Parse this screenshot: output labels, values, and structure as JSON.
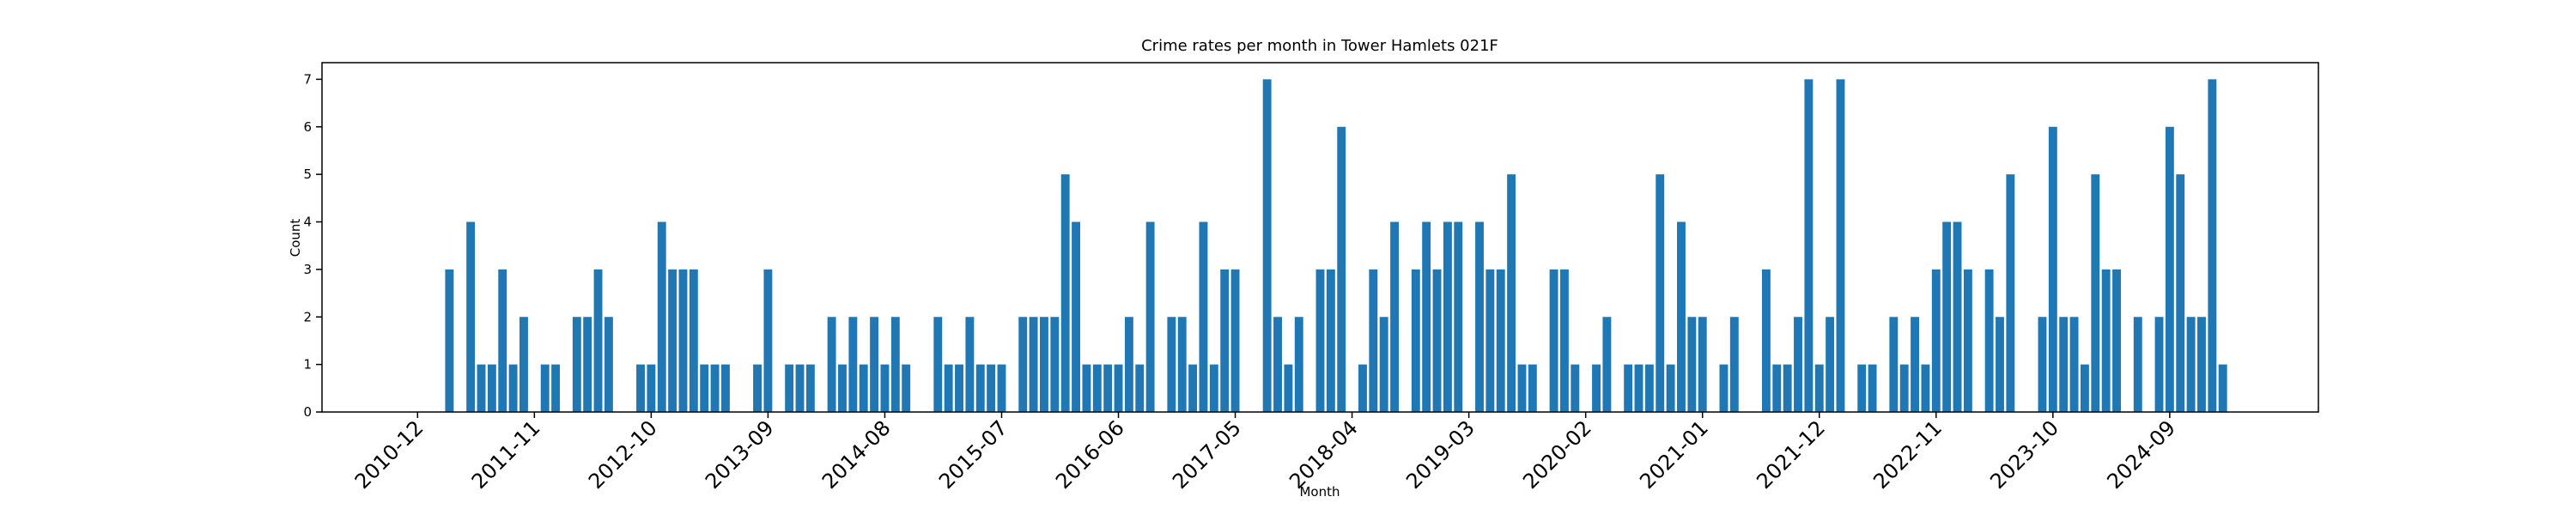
{
  "chart_data": {
    "type": "bar",
    "title": "Crime rates per month in Tower Hamlets 021F",
    "x_label": "Month",
    "y_label": "Count",
    "color": "#1f77b4",
    "x": [
      "2011-03",
      "2011-05",
      "2011-06",
      "2011-07",
      "2011-08",
      "2011-09",
      "2011-10",
      "2011-12",
      "2012-01",
      "2012-03",
      "2012-04",
      "2012-05",
      "2012-06",
      "2012-09",
      "2012-10",
      "2012-11",
      "2012-12",
      "2013-01",
      "2013-02",
      "2013-03",
      "2013-04",
      "2013-05",
      "2013-08",
      "2013-09",
      "2013-11",
      "2013-12",
      "2014-01",
      "2014-03",
      "2014-04",
      "2014-05",
      "2014-06",
      "2014-07",
      "2014-08",
      "2014-09",
      "2014-10",
      "2015-01",
      "2015-02",
      "2015-03",
      "2015-04",
      "2015-05",
      "2015-06",
      "2015-07",
      "2015-09",
      "2015-10",
      "2015-11",
      "2015-12",
      "2016-01",
      "2016-02",
      "2016-03",
      "2016-04",
      "2016-05",
      "2016-06",
      "2016-07",
      "2016-08",
      "2016-09",
      "2016-11",
      "2016-12",
      "2017-01",
      "2017-02",
      "2017-03",
      "2017-04",
      "2017-05",
      "2017-08",
      "2017-09",
      "2017-10",
      "2017-11",
      "2018-01",
      "2018-02",
      "2018-03",
      "2018-05",
      "2018-06",
      "2018-07",
      "2018-08",
      "2018-10",
      "2018-11",
      "2018-12",
      "2019-01",
      "2019-02",
      "2019-04",
      "2019-05",
      "2019-06",
      "2019-07",
      "2019-08",
      "2019-09",
      "2019-11",
      "2019-12",
      "2020-01",
      "2020-03",
      "2020-04",
      "2020-06",
      "2020-07",
      "2020-08",
      "2020-09",
      "2020-10",
      "2020-11",
      "2020-12",
      "2021-01",
      "2021-03",
      "2021-04",
      "2021-07",
      "2021-08",
      "2021-09",
      "2021-10",
      "2021-11",
      "2021-12",
      "2022-01",
      "2022-02",
      "2022-04",
      "2022-05",
      "2022-07",
      "2022-08",
      "2022-09",
      "2022-10",
      "2022-11",
      "2022-12",
      "2023-01",
      "2023-02",
      "2023-04",
      "2023-05",
      "2023-06",
      "2023-09",
      "2023-10",
      "2023-11",
      "2023-12",
      "2024-01",
      "2024-02",
      "2024-03",
      "2024-04",
      "2024-06",
      "2024-08",
      "2024-09",
      "2024-10",
      "2024-11",
      "2024-12",
      "2025-01",
      "2025-02"
    ],
    "values": [
      3,
      4,
      1,
      1,
      3,
      1,
      2,
      1,
      1,
      2,
      2,
      3,
      2,
      1,
      1,
      4,
      3,
      3,
      3,
      1,
      1,
      1,
      1,
      3,
      1,
      1,
      1,
      2,
      1,
      2,
      1,
      2,
      1,
      2,
      1,
      2,
      1,
      1,
      2,
      1,
      1,
      1,
      2,
      2,
      2,
      2,
      5,
      4,
      1,
      1,
      1,
      1,
      2,
      1,
      4,
      2,
      2,
      1,
      4,
      1,
      3,
      3,
      7,
      2,
      1,
      2,
      3,
      3,
      6,
      1,
      3,
      2,
      4,
      3,
      4,
      3,
      4,
      4,
      4,
      3,
      3,
      5,
      1,
      1,
      3,
      3,
      1,
      1,
      2,
      1,
      1,
      1,
      5,
      1,
      4,
      2,
      2,
      1,
      2,
      3,
      1,
      1,
      2,
      7,
      1,
      2,
      7,
      1,
      1,
      2,
      1,
      2,
      1,
      3,
      4,
      4,
      3,
      3,
      2,
      5,
      2,
      6,
      2,
      2,
      1,
      5,
      3,
      3,
      2,
      2,
      6,
      5,
      2,
      2,
      7,
      1
    ],
    "xlim": [
      "2010-03",
      "2025-11"
    ],
    "xticks": [
      "2010-12",
      "2011-11",
      "2012-10",
      "2013-09",
      "2014-08",
      "2015-07",
      "2016-06",
      "2017-05",
      "2018-04",
      "2019-03",
      "2020-02",
      "2021-01",
      "2021-12",
      "2022-11",
      "2023-10",
      "2024-09"
    ],
    "ylim": [
      0,
      7.35
    ],
    "yticks": [
      0,
      1,
      2,
      3,
      4,
      5,
      6,
      7
    ]
  }
}
